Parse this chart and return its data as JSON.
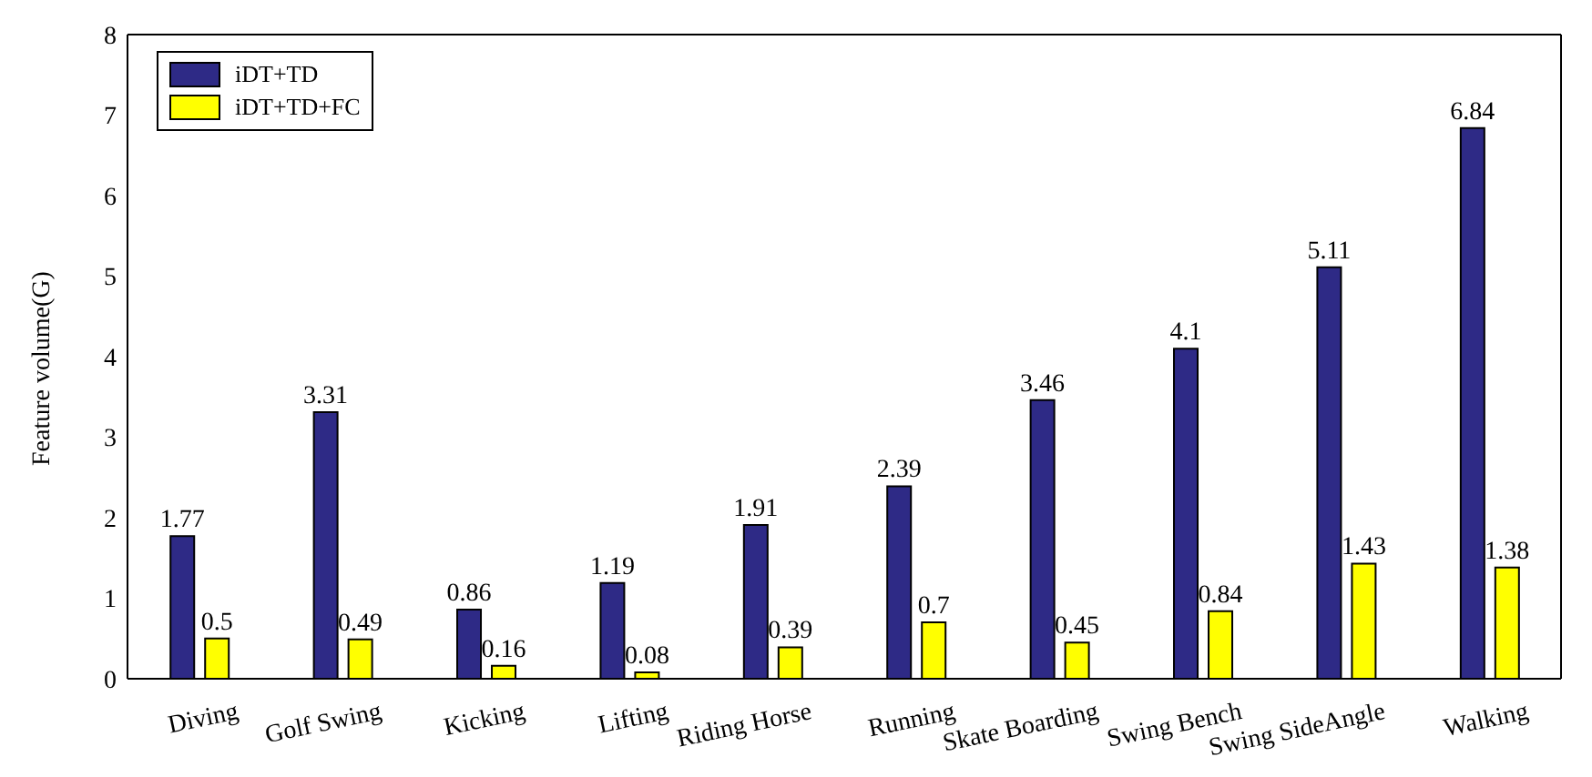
{
  "chart_data": {
    "type": "bar",
    "ylabel": "Feature volume(G)",
    "categories": [
      "Diving",
      "Golf Swing",
      "Kicking",
      "Lifting",
      "Riding Horse",
      "Running",
      "Skate Boarding",
      "Swing Bench",
      "Swing SideAngle",
      "Walking"
    ],
    "series": [
      {
        "name": "iDT+TD",
        "color": "#2e2a86",
        "values": [
          1.77,
          3.31,
          0.86,
          1.19,
          1.91,
          2.39,
          3.46,
          4.1,
          5.11,
          6.84
        ]
      },
      {
        "name": "iDT+TD+FC",
        "color": "#ffff00",
        "values": [
          0.5,
          0.49,
          0.16,
          0.08,
          0.39,
          0.7,
          0.45,
          0.84,
          1.43,
          1.38
        ]
      }
    ],
    "ylim": [
      0,
      8
    ],
    "yticks": [
      0,
      1,
      2,
      3,
      4,
      5,
      6,
      7,
      8
    ],
    "data_labels": true,
    "legend": "top left",
    "grid": false
  }
}
